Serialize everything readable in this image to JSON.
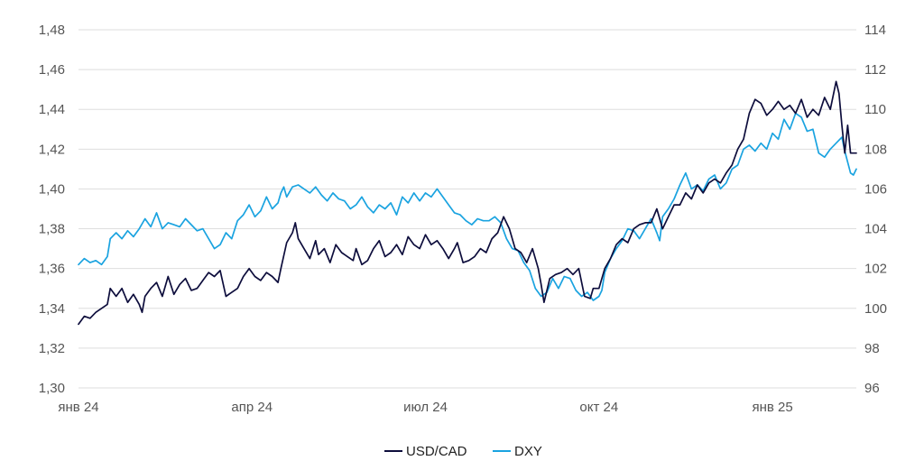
{
  "chart_data": {
    "type": "line",
    "title": "",
    "x_ticks": [
      "янв 24",
      "апр 24",
      "июл 24",
      "окт 24",
      "янв 25"
    ],
    "x_range": [
      0,
      13.45
    ],
    "y_left": {
      "ticks": [
        "1,30",
        "1,32",
        "1,34",
        "1,36",
        "1,38",
        "1,40",
        "1,42",
        "1,44",
        "1,46",
        "1,48"
      ],
      "ylim": [
        1.3,
        1.48
      ]
    },
    "y_right": {
      "ticks": [
        "96",
        "98",
        "100",
        "102",
        "104",
        "106",
        "108",
        "110",
        "112",
        "114"
      ],
      "ylim": [
        96,
        114
      ]
    },
    "grid": true,
    "legend_position": "bottom-center",
    "colors": {
      "usdcad": "#0d0d3c",
      "dxy": "#1aa3e0"
    },
    "series": [
      {
        "key": "usdcad",
        "name": "USD/CAD",
        "axis": "left",
        "points": [
          [
            0,
            1.332
          ],
          [
            0.1,
            1.336
          ],
          [
            0.2,
            1.335
          ],
          [
            0.3,
            1.338
          ],
          [
            0.4,
            1.34
          ],
          [
            0.5,
            1.342
          ],
          [
            0.55,
            1.35
          ],
          [
            0.65,
            1.346
          ],
          [
            0.75,
            1.35
          ],
          [
            0.85,
            1.343
          ],
          [
            0.95,
            1.347
          ],
          [
            1.05,
            1.342
          ],
          [
            1.1,
            1.338
          ],
          [
            1.15,
            1.346
          ],
          [
            1.25,
            1.35
          ],
          [
            1.35,
            1.353
          ],
          [
            1.45,
            1.346
          ],
          [
            1.55,
            1.356
          ],
          [
            1.65,
            1.347
          ],
          [
            1.75,
            1.352
          ],
          [
            1.85,
            1.355
          ],
          [
            1.95,
            1.349
          ],
          [
            2.05,
            1.35
          ],
          [
            2.15,
            1.354
          ],
          [
            2.25,
            1.358
          ],
          [
            2.35,
            1.356
          ],
          [
            2.45,
            1.359
          ],
          [
            2.55,
            1.346
          ],
          [
            2.65,
            1.348
          ],
          [
            2.75,
            1.35
          ],
          [
            2.85,
            1.356
          ],
          [
            2.95,
            1.36
          ],
          [
            3.05,
            1.356
          ],
          [
            3.15,
            1.354
          ],
          [
            3.25,
            1.358
          ],
          [
            3.35,
            1.356
          ],
          [
            3.45,
            1.353
          ],
          [
            3.5,
            1.36
          ],
          [
            3.6,
            1.373
          ],
          [
            3.7,
            1.378
          ],
          [
            3.75,
            1.383
          ],
          [
            3.8,
            1.375
          ],
          [
            3.9,
            1.37
          ],
          [
            4.0,
            1.365
          ],
          [
            4.1,
            1.374
          ],
          [
            4.15,
            1.367
          ],
          [
            4.25,
            1.37
          ],
          [
            4.35,
            1.363
          ],
          [
            4.45,
            1.372
          ],
          [
            4.55,
            1.368
          ],
          [
            4.65,
            1.366
          ],
          [
            4.75,
            1.364
          ],
          [
            4.8,
            1.37
          ],
          [
            4.9,
            1.362
          ],
          [
            5.0,
            1.364
          ],
          [
            5.1,
            1.37
          ],
          [
            5.2,
            1.374
          ],
          [
            5.3,
            1.366
          ],
          [
            5.4,
            1.368
          ],
          [
            5.5,
            1.372
          ],
          [
            5.6,
            1.367
          ],
          [
            5.7,
            1.376
          ],
          [
            5.8,
            1.372
          ],
          [
            5.9,
            1.37
          ],
          [
            6.0,
            1.377
          ],
          [
            6.1,
            1.372
          ],
          [
            6.2,
            1.374
          ],
          [
            6.3,
            1.37
          ],
          [
            6.4,
            1.365
          ],
          [
            6.5,
            1.37
          ],
          [
            6.55,
            1.373
          ],
          [
            6.65,
            1.363
          ],
          [
            6.75,
            1.364
          ],
          [
            6.85,
            1.366
          ],
          [
            6.95,
            1.37
          ],
          [
            7.05,
            1.368
          ],
          [
            7.15,
            1.375
          ],
          [
            7.25,
            1.378
          ],
          [
            7.35,
            1.386
          ],
          [
            7.45,
            1.38
          ],
          [
            7.55,
            1.37
          ],
          [
            7.65,
            1.368
          ],
          [
            7.75,
            1.363
          ],
          [
            7.85,
            1.37
          ],
          [
            7.95,
            1.36
          ],
          [
            8.0,
            1.352
          ],
          [
            8.05,
            1.343
          ],
          [
            8.15,
            1.355
          ],
          [
            8.25,
            1.357
          ],
          [
            8.35,
            1.358
          ],
          [
            8.45,
            1.36
          ],
          [
            8.55,
            1.357
          ],
          [
            8.65,
            1.36
          ],
          [
            8.75,
            1.346
          ],
          [
            8.85,
            1.345
          ],
          [
            8.9,
            1.35
          ],
          [
            9.0,
            1.35
          ],
          [
            9.1,
            1.36
          ],
          [
            9.2,
            1.365
          ],
          [
            9.3,
            1.372
          ],
          [
            9.4,
            1.375
          ],
          [
            9.5,
            1.373
          ],
          [
            9.6,
            1.38
          ],
          [
            9.7,
            1.382
          ],
          [
            9.8,
            1.383
          ],
          [
            9.9,
            1.383
          ],
          [
            10.0,
            1.39
          ],
          [
            10.1,
            1.38
          ],
          [
            10.2,
            1.386
          ],
          [
            10.3,
            1.392
          ],
          [
            10.4,
            1.392
          ],
          [
            10.5,
            1.398
          ],
          [
            10.6,
            1.395
          ],
          [
            10.7,
            1.402
          ],
          [
            10.8,
            1.398
          ],
          [
            10.9,
            1.403
          ],
          [
            11.0,
            1.405
          ],
          [
            11.1,
            1.403
          ],
          [
            11.2,
            1.408
          ],
          [
            11.3,
            1.412
          ],
          [
            11.4,
            1.42
          ],
          [
            11.5,
            1.425
          ],
          [
            11.6,
            1.438
          ],
          [
            11.7,
            1.445
          ],
          [
            11.8,
            1.443
          ],
          [
            11.9,
            1.437
          ],
          [
            12.0,
            1.44
          ],
          [
            12.1,
            1.444
          ],
          [
            12.2,
            1.44
          ],
          [
            12.3,
            1.442
          ],
          [
            12.4,
            1.438
          ],
          [
            12.5,
            1.445
          ],
          [
            12.6,
            1.436
          ],
          [
            12.7,
            1.44
          ],
          [
            12.8,
            1.437
          ],
          [
            12.9,
            1.446
          ],
          [
            13.0,
            1.44
          ],
          [
            13.1,
            1.454
          ],
          [
            13.15,
            1.448
          ],
          [
            13.2,
            1.432
          ],
          [
            13.25,
            1.418
          ],
          [
            13.3,
            1.432
          ],
          [
            13.35,
            1.418
          ],
          [
            13.45,
            1.418
          ]
        ]
      },
      {
        "key": "dxy",
        "name": "DXY",
        "axis": "right",
        "points": [
          [
            0,
            102.2
          ],
          [
            0.1,
            102.5
          ],
          [
            0.2,
            102.3
          ],
          [
            0.3,
            102.4
          ],
          [
            0.4,
            102.2
          ],
          [
            0.5,
            102.6
          ],
          [
            0.55,
            103.5
          ],
          [
            0.65,
            103.8
          ],
          [
            0.75,
            103.5
          ],
          [
            0.85,
            103.9
          ],
          [
            0.95,
            103.6
          ],
          [
            1.05,
            104.0
          ],
          [
            1.15,
            104.5
          ],
          [
            1.25,
            104.1
          ],
          [
            1.35,
            104.8
          ],
          [
            1.45,
            104.0
          ],
          [
            1.55,
            104.3
          ],
          [
            1.65,
            104.2
          ],
          [
            1.75,
            104.1
          ],
          [
            1.85,
            104.5
          ],
          [
            1.95,
            104.2
          ],
          [
            2.05,
            103.9
          ],
          [
            2.15,
            104.0
          ],
          [
            2.25,
            103.5
          ],
          [
            2.35,
            103.0
          ],
          [
            2.45,
            103.2
          ],
          [
            2.55,
            103.8
          ],
          [
            2.65,
            103.5
          ],
          [
            2.75,
            104.4
          ],
          [
            2.85,
            104.7
          ],
          [
            2.95,
            105.2
          ],
          [
            3.05,
            104.6
          ],
          [
            3.15,
            104.9
          ],
          [
            3.25,
            105.6
          ],
          [
            3.35,
            105.0
          ],
          [
            3.45,
            105.3
          ],
          [
            3.5,
            105.8
          ],
          [
            3.55,
            106.1
          ],
          [
            3.6,
            105.6
          ],
          [
            3.7,
            106.1
          ],
          [
            3.8,
            106.2
          ],
          [
            3.9,
            106.0
          ],
          [
            4.0,
            105.8
          ],
          [
            4.1,
            106.1
          ],
          [
            4.2,
            105.7
          ],
          [
            4.3,
            105.4
          ],
          [
            4.4,
            105.8
          ],
          [
            4.5,
            105.5
          ],
          [
            4.6,
            105.4
          ],
          [
            4.7,
            105.0
          ],
          [
            4.8,
            105.2
          ],
          [
            4.9,
            105.6
          ],
          [
            5.0,
            105.1
          ],
          [
            5.1,
            104.8
          ],
          [
            5.2,
            105.2
          ],
          [
            5.3,
            105.0
          ],
          [
            5.4,
            105.3
          ],
          [
            5.5,
            104.7
          ],
          [
            5.6,
            105.6
          ],
          [
            5.7,
            105.3
          ],
          [
            5.8,
            105.8
          ],
          [
            5.9,
            105.4
          ],
          [
            6.0,
            105.8
          ],
          [
            6.1,
            105.6
          ],
          [
            6.2,
            106.0
          ],
          [
            6.3,
            105.6
          ],
          [
            6.4,
            105.2
          ],
          [
            6.5,
            104.8
          ],
          [
            6.6,
            104.7
          ],
          [
            6.7,
            104.4
          ],
          [
            6.8,
            104.2
          ],
          [
            6.9,
            104.5
          ],
          [
            7.0,
            104.4
          ],
          [
            7.1,
            104.4
          ],
          [
            7.2,
            104.6
          ],
          [
            7.3,
            104.3
          ],
          [
            7.4,
            103.5
          ],
          [
            7.5,
            103.0
          ],
          [
            7.6,
            102.9
          ],
          [
            7.7,
            102.3
          ],
          [
            7.8,
            101.9
          ],
          [
            7.9,
            101.0
          ],
          [
            8.0,
            100.6
          ],
          [
            8.1,
            100.8
          ],
          [
            8.2,
            101.5
          ],
          [
            8.3,
            101.0
          ],
          [
            8.4,
            101.6
          ],
          [
            8.5,
            101.5
          ],
          [
            8.6,
            100.9
          ],
          [
            8.7,
            100.6
          ],
          [
            8.8,
            100.8
          ],
          [
            8.9,
            100.4
          ],
          [
            9.0,
            100.6
          ],
          [
            9.05,
            100.9
          ],
          [
            9.1,
            101.8
          ],
          [
            9.2,
            102.5
          ],
          [
            9.3,
            103.0
          ],
          [
            9.4,
            103.4
          ],
          [
            9.5,
            104.0
          ],
          [
            9.6,
            103.9
          ],
          [
            9.7,
            103.5
          ],
          [
            9.8,
            104.0
          ],
          [
            9.9,
            104.5
          ],
          [
            10.0,
            103.8
          ],
          [
            10.05,
            103.4
          ],
          [
            10.1,
            104.6
          ],
          [
            10.2,
            105.0
          ],
          [
            10.3,
            105.5
          ],
          [
            10.4,
            106.2
          ],
          [
            10.5,
            106.8
          ],
          [
            10.6,
            106.0
          ],
          [
            10.7,
            106.2
          ],
          [
            10.8,
            105.9
          ],
          [
            10.9,
            106.5
          ],
          [
            11.0,
            106.7
          ],
          [
            11.1,
            106.0
          ],
          [
            11.2,
            106.3
          ],
          [
            11.3,
            107.0
          ],
          [
            11.4,
            107.2
          ],
          [
            11.5,
            108.0
          ],
          [
            11.6,
            108.2
          ],
          [
            11.7,
            107.9
          ],
          [
            11.8,
            108.3
          ],
          [
            11.9,
            108.0
          ],
          [
            12.0,
            108.8
          ],
          [
            12.1,
            108.5
          ],
          [
            12.2,
            109.5
          ],
          [
            12.3,
            109.0
          ],
          [
            12.4,
            109.8
          ],
          [
            12.5,
            109.6
          ],
          [
            12.6,
            108.9
          ],
          [
            12.7,
            109.0
          ],
          [
            12.8,
            107.8
          ],
          [
            12.9,
            107.6
          ],
          [
            13.0,
            108.0
          ],
          [
            13.1,
            108.3
          ],
          [
            13.2,
            108.6
          ],
          [
            13.25,
            107.9
          ],
          [
            13.35,
            106.8
          ],
          [
            13.4,
            106.7
          ],
          [
            13.45,
            107.0
          ]
        ]
      }
    ]
  }
}
